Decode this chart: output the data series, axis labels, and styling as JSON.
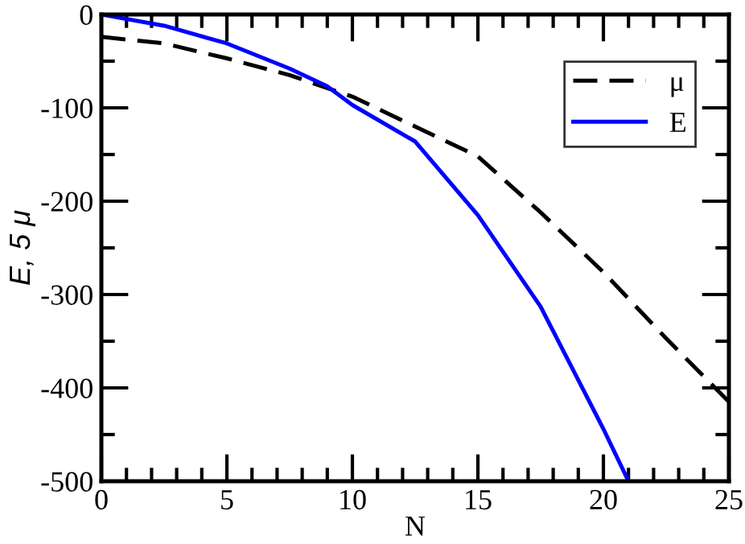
{
  "chart_data": {
    "type": "line",
    "xlabel": "N",
    "ylabel": "E, 5 μ",
    "xlim": [
      0,
      25
    ],
    "ylim": [
      -500,
      0
    ],
    "xticks": [
      0,
      5,
      10,
      15,
      20,
      25
    ],
    "yticks": [
      -500,
      -400,
      -300,
      -200,
      -100,
      0
    ],
    "legend": "top right",
    "grid": false,
    "series": [
      {
        "name": "μ",
        "color": "#000000",
        "line_style": "dashed",
        "x": [
          0,
          2.5,
          5,
          7.5,
          10,
          12.5,
          15,
          17.5,
          20,
          22.5,
          25
        ],
        "values": [
          -24,
          -31,
          -47,
          -65,
          -88,
          -120,
          -152,
          -212,
          -276,
          -347,
          -415
        ]
      },
      {
        "name": "E",
        "color": "#0000ff",
        "line_style": "solid",
        "x": [
          0,
          2.5,
          5,
          7.5,
          9,
          10,
          12.5,
          15,
          17.5,
          20,
          21
        ],
        "values": [
          0,
          -12,
          -31,
          -58,
          -77,
          -97,
          -136,
          -215,
          -313,
          -444,
          -500
        ]
      }
    ]
  }
}
